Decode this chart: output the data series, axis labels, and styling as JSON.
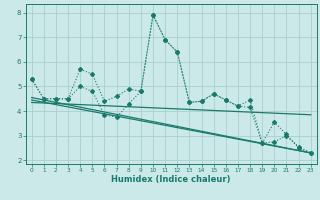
{
  "title": "",
  "xlabel": "Humidex (Indice chaleur)",
  "xlim": [
    -0.5,
    23.5
  ],
  "ylim": [
    1.85,
    8.35
  ],
  "yticks": [
    2,
    3,
    4,
    5,
    6,
    7,
    8
  ],
  "xticks": [
    0,
    1,
    2,
    3,
    4,
    5,
    6,
    7,
    8,
    9,
    10,
    11,
    12,
    13,
    14,
    15,
    16,
    17,
    18,
    19,
    20,
    21,
    22,
    23
  ],
  "bg_color": "#cce9e9",
  "grid_color": "#aacfcf",
  "line_color": "#1a7a6a",
  "line1_x": [
    0,
    1,
    2,
    3,
    4,
    5,
    6,
    7,
    8,
    9,
    10,
    11,
    12,
    13,
    14,
    15,
    16,
    17,
    18,
    19,
    20,
    21,
    22,
    23
  ],
  "line1_y": [
    5.3,
    4.5,
    4.5,
    4.5,
    5.7,
    5.5,
    4.4,
    4.6,
    4.9,
    4.8,
    7.9,
    6.9,
    6.4,
    4.35,
    4.4,
    4.7,
    4.45,
    4.2,
    4.45,
    2.7,
    3.55,
    3.05,
    2.5,
    2.3
  ],
  "line2_x": [
    0,
    1,
    2,
    3,
    4,
    5,
    6,
    7,
    8,
    9,
    10,
    11,
    12,
    13,
    14,
    15,
    16,
    17,
    18,
    19,
    20,
    21,
    22,
    23
  ],
  "line2_y": [
    5.3,
    4.5,
    4.5,
    4.5,
    5.0,
    4.8,
    3.85,
    3.75,
    4.3,
    4.8,
    7.9,
    6.9,
    6.4,
    4.35,
    4.4,
    4.7,
    4.45,
    4.2,
    4.15,
    2.7,
    2.75,
    3.0,
    2.55,
    2.3
  ],
  "line3_x": [
    0,
    23
  ],
  "line3_y": [
    4.55,
    2.3
  ],
  "line4_x": [
    0,
    23
  ],
  "line4_y": [
    4.45,
    2.3
  ],
  "line5_x": [
    0,
    23
  ],
  "line5_y": [
    4.35,
    3.85
  ]
}
